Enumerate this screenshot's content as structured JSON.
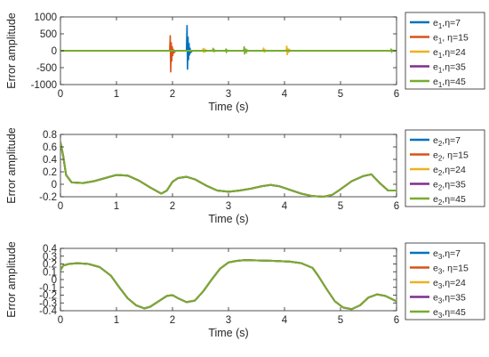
{
  "figure": {
    "colors": [
      "#0072BD",
      "#D95319",
      "#EDB120",
      "#7E2F8E",
      "#77AC30"
    ]
  },
  "chart_data": [
    {
      "type": "line",
      "xlabel": "Time (s)",
      "ylabel": "Error amplitude",
      "xlim": [
        0,
        6
      ],
      "ylim": [
        -1000,
        1000
      ],
      "xticks": [
        0,
        1,
        2,
        3,
        4,
        5,
        6
      ],
      "yticks": [
        -1000,
        -500,
        0,
        500,
        1000
      ],
      "legend_position": "right",
      "grid": false,
      "legend": [
        {
          "e": "e",
          "sub": "1",
          "rest": ",η=7"
        },
        {
          "e": "e",
          "sub": "1",
          "rest": ", η=15"
        },
        {
          "e": "e",
          "sub": "1",
          "rest": ",η=24"
        },
        {
          "e": "e",
          "sub": "1",
          "rest": ",η=35"
        },
        {
          "e": "e",
          "sub": "1",
          "rest": ",η=45"
        }
      ],
      "series": [
        {
          "x": [
            0,
            6
          ],
          "y": [
            0,
            0
          ]
        },
        {
          "x": [
            0,
            6
          ],
          "y": [
            0,
            0
          ]
        },
        {
          "x": [
            0,
            6
          ],
          "y": [
            0,
            0
          ]
        },
        {
          "x": [
            0,
            6
          ],
          "y": [
            0,
            0
          ]
        },
        {
          "x": [
            0,
            6
          ],
          "y": [
            0,
            0
          ]
        }
      ],
      "spikes": [
        {
          "series": 1,
          "t": 1.96,
          "up": 460,
          "down": -640
        },
        {
          "series": 0,
          "t": 2.26,
          "up": 760,
          "down": -560
        },
        {
          "series": 2,
          "t": 2.55,
          "up": 80,
          "down": -60
        },
        {
          "series": 4,
          "t": 2.72,
          "up": 40,
          "down": -30
        },
        {
          "series": 4,
          "t": 2.95,
          "up": 30,
          "down": -25
        },
        {
          "series": 4,
          "t": 3.28,
          "up": 130,
          "down": -110
        },
        {
          "series": 2,
          "t": 3.62,
          "up": 45,
          "down": -35
        },
        {
          "series": 2,
          "t": 4.04,
          "up": 150,
          "down": -130
        },
        {
          "series": 4,
          "t": 5.9,
          "up": 30,
          "down": -20
        }
      ]
    },
    {
      "type": "line",
      "xlabel": "Time (s)",
      "ylabel": "Error amplitude",
      "xlim": [
        0,
        6
      ],
      "ylim": [
        -0.2,
        0.8
      ],
      "xticks": [
        0,
        1,
        2,
        3,
        4,
        5,
        6
      ],
      "yticks": [
        -0.2,
        0,
        0.2,
        0.4,
        0.6,
        0.8
      ],
      "legend_position": "right",
      "grid": false,
      "legend": [
        {
          "e": "e",
          "sub": "2",
          "rest": ",η=7"
        },
        {
          "e": "e",
          "sub": "2",
          "rest": ", η=15"
        },
        {
          "e": "e",
          "sub": "2",
          "rest": ",η=24"
        },
        {
          "e": "e",
          "sub": "2",
          "rest": ",η=35"
        },
        {
          "e": "e",
          "sub": "2",
          "rest": ",η=45"
        }
      ],
      "series": [
        {
          "x": [
            0,
            0.05,
            0.1,
            0.2,
            0.4,
            0.6,
            0.8,
            1.0,
            1.2,
            1.4,
            1.6,
            1.8,
            1.9,
            2.0,
            2.1,
            2.25,
            2.4,
            2.6,
            2.8,
            3.0,
            3.2,
            3.4,
            3.6,
            3.75,
            3.9,
            4.1,
            4.3,
            4.5,
            4.7,
            4.85,
            5.0,
            5.2,
            5.4,
            5.55,
            5.7,
            5.85,
            6.0
          ],
          "y": [
            0.68,
            0.45,
            0.15,
            0.03,
            0.02,
            0.05,
            0.1,
            0.15,
            0.14,
            0.06,
            -0.05,
            -0.15,
            -0.1,
            0.04,
            0.1,
            0.12,
            0.08,
            -0.02,
            -0.1,
            -0.12,
            -0.1,
            -0.07,
            -0.03,
            -0.01,
            -0.03,
            -0.09,
            -0.15,
            -0.19,
            -0.2,
            -0.17,
            -0.08,
            0.05,
            0.13,
            0.16,
            0.02,
            -0.1,
            -0.1
          ]
        },
        {
          "x": [
            0,
            0.05,
            0.1,
            0.2,
            0.4,
            0.6,
            0.8,
            1.0,
            1.2,
            1.4,
            1.6,
            1.8,
            1.9,
            2.0,
            2.1,
            2.25,
            2.4,
            2.6,
            2.8,
            3.0,
            3.2,
            3.4,
            3.6,
            3.75,
            3.9,
            4.1,
            4.3,
            4.5,
            4.7,
            4.85,
            5.0,
            5.2,
            5.4,
            5.55,
            5.7,
            5.85,
            6.0
          ],
          "y": [
            0.68,
            0.45,
            0.15,
            0.03,
            0.02,
            0.05,
            0.1,
            0.15,
            0.14,
            0.06,
            -0.05,
            -0.15,
            -0.1,
            0.04,
            0.1,
            0.12,
            0.08,
            -0.02,
            -0.1,
            -0.12,
            -0.1,
            -0.07,
            -0.03,
            -0.01,
            -0.03,
            -0.09,
            -0.15,
            -0.19,
            -0.2,
            -0.17,
            -0.08,
            0.05,
            0.13,
            0.16,
            0.02,
            -0.1,
            -0.1
          ]
        },
        {
          "x": [
            0,
            0.05,
            0.1,
            0.2,
            0.4,
            0.6,
            0.8,
            1.0,
            1.2,
            1.4,
            1.6,
            1.8,
            1.9,
            2.0,
            2.1,
            2.25,
            2.4,
            2.6,
            2.8,
            3.0,
            3.2,
            3.4,
            3.6,
            3.75,
            3.9,
            4.1,
            4.3,
            4.5,
            4.7,
            4.85,
            5.0,
            5.2,
            5.4,
            5.55,
            5.7,
            5.85,
            6.0
          ],
          "y": [
            0.68,
            0.45,
            0.15,
            0.03,
            0.02,
            0.05,
            0.1,
            0.15,
            0.14,
            0.06,
            -0.05,
            -0.15,
            -0.1,
            0.04,
            0.1,
            0.12,
            0.08,
            -0.02,
            -0.1,
            -0.12,
            -0.1,
            -0.07,
            -0.03,
            -0.01,
            -0.03,
            -0.09,
            -0.15,
            -0.19,
            -0.2,
            -0.17,
            -0.08,
            0.05,
            0.13,
            0.16,
            0.02,
            -0.1,
            -0.1
          ]
        },
        {
          "x": [
            0,
            0.05,
            0.1,
            0.2,
            0.4,
            0.6,
            0.8,
            1.0,
            1.2,
            1.4,
            1.6,
            1.8,
            1.9,
            2.0,
            2.1,
            2.25,
            2.4,
            2.6,
            2.8,
            3.0,
            3.2,
            3.4,
            3.6,
            3.75,
            3.9,
            4.1,
            4.3,
            4.5,
            4.7,
            4.85,
            5.0,
            5.2,
            5.4,
            5.55,
            5.7,
            5.85,
            6.0
          ],
          "y": [
            0.68,
            0.45,
            0.15,
            0.03,
            0.02,
            0.05,
            0.1,
            0.15,
            0.14,
            0.06,
            -0.05,
            -0.15,
            -0.1,
            0.04,
            0.1,
            0.12,
            0.08,
            -0.02,
            -0.1,
            -0.12,
            -0.1,
            -0.07,
            -0.03,
            -0.01,
            -0.03,
            -0.09,
            -0.15,
            -0.19,
            -0.2,
            -0.17,
            -0.08,
            0.05,
            0.13,
            0.16,
            0.02,
            -0.1,
            -0.1
          ]
        },
        {
          "x": [
            0,
            0.05,
            0.1,
            0.2,
            0.4,
            0.6,
            0.8,
            1.0,
            1.2,
            1.4,
            1.6,
            1.8,
            1.9,
            2.0,
            2.1,
            2.25,
            2.4,
            2.6,
            2.8,
            3.0,
            3.2,
            3.4,
            3.6,
            3.75,
            3.9,
            4.1,
            4.3,
            4.5,
            4.7,
            4.85,
            5.0,
            5.2,
            5.4,
            5.55,
            5.7,
            5.85,
            6.0
          ],
          "y": [
            0.68,
            0.45,
            0.15,
            0.03,
            0.02,
            0.05,
            0.1,
            0.15,
            0.14,
            0.06,
            -0.05,
            -0.15,
            -0.1,
            0.04,
            0.1,
            0.12,
            0.08,
            -0.02,
            -0.1,
            -0.12,
            -0.1,
            -0.07,
            -0.03,
            -0.01,
            -0.03,
            -0.09,
            -0.15,
            -0.19,
            -0.2,
            -0.17,
            -0.08,
            0.05,
            0.13,
            0.16,
            0.02,
            -0.1,
            -0.1
          ]
        }
      ]
    },
    {
      "type": "line",
      "xlabel": "Time (s)",
      "ylabel": "Error amplitude",
      "xlim": [
        0,
        6
      ],
      "ylim": [
        -0.4,
        0.4
      ],
      "xticks": [
        0,
        1,
        2,
        3,
        4,
        5,
        6
      ],
      "yticks": [
        -0.4,
        -0.3,
        -0.2,
        -0.1,
        0,
        0.1,
        0.2,
        0.3,
        0.4
      ],
      "legend_position": "right",
      "grid": false,
      "legend": [
        {
          "e": "e",
          "sub": "3",
          "rest": ",η=7"
        },
        {
          "e": "e",
          "sub": "3",
          "rest": ", η=15"
        },
        {
          "e": "e",
          "sub": "3",
          "rest": ",η=24"
        },
        {
          "e": "e",
          "sub": "3",
          "rest": ",η=35"
        },
        {
          "e": "e",
          "sub": "3",
          "rest": ",η=45"
        }
      ],
      "series": [
        {
          "x": [
            0,
            0.05,
            0.15,
            0.3,
            0.5,
            0.7,
            0.9,
            1.05,
            1.2,
            1.35,
            1.5,
            1.6,
            1.75,
            1.9,
            2.0,
            2.1,
            2.25,
            2.4,
            2.55,
            2.7,
            2.85,
            3.0,
            3.15,
            3.3,
            3.5,
            3.8,
            4.1,
            4.3,
            4.5,
            4.6,
            4.75,
            4.9,
            5.05,
            5.2,
            5.35,
            5.5,
            5.65,
            5.8,
            6.0
          ],
          "y": [
            0.12,
            0.18,
            0.2,
            0.21,
            0.2,
            0.16,
            0.05,
            -0.1,
            -0.24,
            -0.33,
            -0.37,
            -0.35,
            -0.28,
            -0.21,
            -0.2,
            -0.24,
            -0.29,
            -0.27,
            -0.15,
            0.0,
            0.14,
            0.22,
            0.24,
            0.25,
            0.245,
            0.24,
            0.23,
            0.21,
            0.15,
            0.05,
            -0.12,
            -0.28,
            -0.36,
            -0.38,
            -0.33,
            -0.23,
            -0.19,
            -0.21,
            -0.28
          ]
        },
        {
          "x": [
            0,
            0.05,
            0.15,
            0.3,
            0.5,
            0.7,
            0.9,
            1.05,
            1.2,
            1.35,
            1.5,
            1.6,
            1.75,
            1.9,
            2.0,
            2.1,
            2.25,
            2.4,
            2.55,
            2.7,
            2.85,
            3.0,
            3.15,
            3.3,
            3.5,
            3.8,
            4.1,
            4.3,
            4.5,
            4.6,
            4.75,
            4.9,
            5.05,
            5.2,
            5.35,
            5.5,
            5.65,
            5.8,
            6.0
          ],
          "y": [
            0.12,
            0.18,
            0.2,
            0.21,
            0.2,
            0.16,
            0.05,
            -0.1,
            -0.24,
            -0.33,
            -0.37,
            -0.35,
            -0.28,
            -0.21,
            -0.2,
            -0.24,
            -0.29,
            -0.27,
            -0.15,
            0.0,
            0.14,
            0.22,
            0.24,
            0.25,
            0.245,
            0.24,
            0.23,
            0.21,
            0.15,
            0.05,
            -0.12,
            -0.28,
            -0.36,
            -0.38,
            -0.33,
            -0.23,
            -0.19,
            -0.21,
            -0.28
          ]
        },
        {
          "x": [
            0,
            0.05,
            0.15,
            0.3,
            0.5,
            0.7,
            0.9,
            1.05,
            1.2,
            1.35,
            1.5,
            1.6,
            1.75,
            1.9,
            2.0,
            2.1,
            2.25,
            2.4,
            2.55,
            2.7,
            2.85,
            3.0,
            3.15,
            3.3,
            3.5,
            3.8,
            4.1,
            4.3,
            4.5,
            4.6,
            4.75,
            4.9,
            5.05,
            5.2,
            5.35,
            5.5,
            5.65,
            5.8,
            6.0
          ],
          "y": [
            0.12,
            0.18,
            0.2,
            0.21,
            0.2,
            0.16,
            0.05,
            -0.1,
            -0.24,
            -0.33,
            -0.37,
            -0.35,
            -0.28,
            -0.21,
            -0.2,
            -0.24,
            -0.29,
            -0.27,
            -0.15,
            0.0,
            0.14,
            0.22,
            0.24,
            0.25,
            0.245,
            0.24,
            0.23,
            0.21,
            0.15,
            0.05,
            -0.12,
            -0.28,
            -0.36,
            -0.38,
            -0.33,
            -0.23,
            -0.19,
            -0.21,
            -0.28
          ]
        },
        {
          "x": [
            0,
            0.05,
            0.15,
            0.3,
            0.5,
            0.7,
            0.9,
            1.05,
            1.2,
            1.35,
            1.5,
            1.6,
            1.75,
            1.9,
            2.0,
            2.1,
            2.25,
            2.4,
            2.55,
            2.7,
            2.85,
            3.0,
            3.15,
            3.3,
            3.5,
            3.8,
            4.1,
            4.3,
            4.5,
            4.6,
            4.75,
            4.9,
            5.05,
            5.2,
            5.35,
            5.5,
            5.65,
            5.8,
            6.0
          ],
          "y": [
            0.12,
            0.18,
            0.2,
            0.21,
            0.2,
            0.16,
            0.05,
            -0.1,
            -0.24,
            -0.33,
            -0.37,
            -0.35,
            -0.28,
            -0.21,
            -0.2,
            -0.24,
            -0.29,
            -0.27,
            -0.15,
            0.0,
            0.14,
            0.22,
            0.24,
            0.25,
            0.245,
            0.24,
            0.23,
            0.21,
            0.15,
            0.05,
            -0.12,
            -0.28,
            -0.36,
            -0.38,
            -0.33,
            -0.23,
            -0.19,
            -0.21,
            -0.28
          ]
        },
        {
          "x": [
            0,
            0.05,
            0.15,
            0.3,
            0.5,
            0.7,
            0.9,
            1.05,
            1.2,
            1.35,
            1.5,
            1.6,
            1.75,
            1.9,
            2.0,
            2.1,
            2.25,
            2.4,
            2.55,
            2.7,
            2.85,
            3.0,
            3.15,
            3.3,
            3.5,
            3.8,
            4.1,
            4.3,
            4.5,
            4.6,
            4.75,
            4.9,
            5.05,
            5.2,
            5.35,
            5.5,
            5.65,
            5.8,
            6.0
          ],
          "y": [
            0.12,
            0.18,
            0.2,
            0.21,
            0.2,
            0.16,
            0.05,
            -0.1,
            -0.24,
            -0.33,
            -0.37,
            -0.35,
            -0.28,
            -0.21,
            -0.2,
            -0.24,
            -0.29,
            -0.27,
            -0.15,
            0.0,
            0.14,
            0.22,
            0.24,
            0.25,
            0.245,
            0.24,
            0.23,
            0.21,
            0.15,
            0.05,
            -0.12,
            -0.28,
            -0.36,
            -0.38,
            -0.33,
            -0.23,
            -0.19,
            -0.21,
            -0.28
          ]
        }
      ]
    }
  ]
}
